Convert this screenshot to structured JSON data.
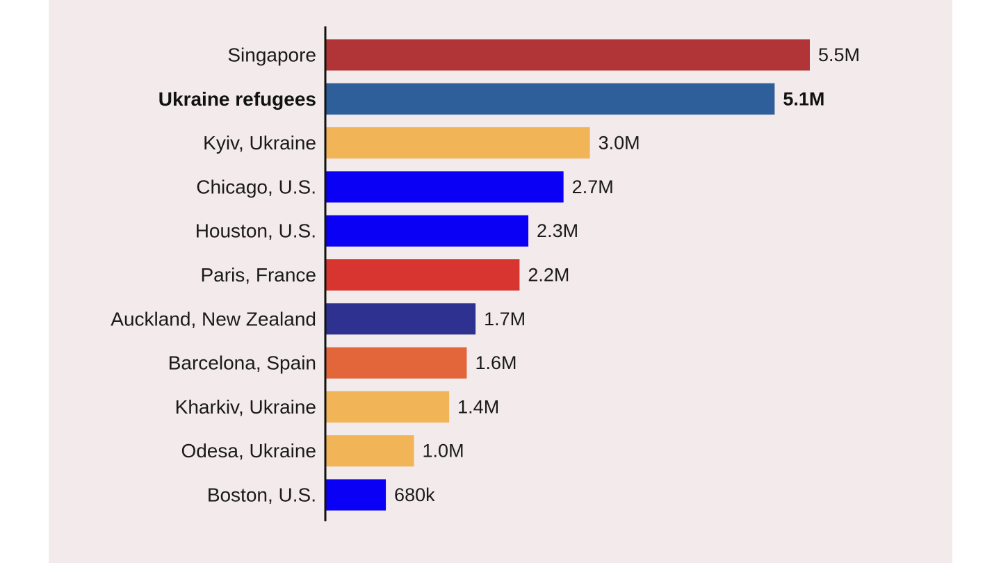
{
  "chart_data": {
    "type": "bar",
    "orientation": "horizontal",
    "title": "",
    "xlabel": "",
    "ylabel": "",
    "xlim": [
      0,
      5500000
    ],
    "grid": false,
    "legend": "none",
    "categories": [
      "Singapore",
      "Ukraine refugees",
      "Kyiv, Ukraine",
      "Chicago, U.S.",
      "Houston, U.S.",
      "Paris, France",
      "Auckland, New Zealand",
      "Barcelona, Spain",
      "Kharkiv, Ukraine",
      "Odesa, Ukraine",
      "Boston, U.S."
    ],
    "values": [
      5500000,
      5100000,
      3000000,
      2700000,
      2300000,
      2200000,
      1700000,
      1600000,
      1400000,
      1000000,
      680000
    ],
    "value_labels": [
      "5.5M",
      "5.1M",
      "3.0M",
      "2.7M",
      "2.3M",
      "2.2M",
      "1.7M",
      "1.6M",
      "1.4M",
      "1.0M",
      "680k"
    ],
    "highlighted": [
      false,
      true,
      false,
      false,
      false,
      false,
      false,
      false,
      false,
      false,
      false
    ],
    "colors": [
      "#b13536",
      "#2f5f9b",
      "#f1b457",
      "#0a00f5",
      "#0a00f5",
      "#d93530",
      "#2e3190",
      "#e3663a",
      "#f1b457",
      "#f1b457",
      "#0a00f5"
    ]
  },
  "colors": {
    "background": "#f3eaeb",
    "axis": "#111111"
  }
}
